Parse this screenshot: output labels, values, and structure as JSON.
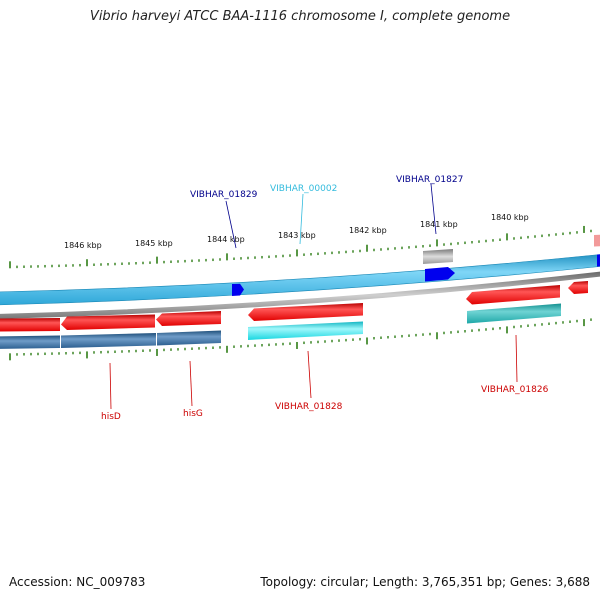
{
  "title": "Vibrio harveyi ATCC BAA-1116 chromosome I, complete genome",
  "footer": {
    "accession": "Accession: NC_009783",
    "topology": "Topology: circular; Length: 3,765,351 bp; Genes: 3,688"
  },
  "scale": {
    "ticks": [
      "1846 kbp",
      "1845 kbp",
      "1844 kbp",
      "1843 kbp",
      "1842 kbp",
      "1841 kbp",
      "1840 kbp"
    ]
  },
  "labels": {
    "top": [
      {
        "text": "VIBHAR_01829",
        "color": "#00008b"
      },
      {
        "text": "VIBHAR_00002",
        "color": "#33bbdd"
      },
      {
        "text": "VIBHAR_01827",
        "color": "#00008b"
      }
    ],
    "bottom": [
      {
        "text": "hisD",
        "color": "#cc0000"
      },
      {
        "text": "hisG",
        "color": "#cc0000"
      },
      {
        "text": "VIBHAR_01828",
        "color": "#cc0000"
      },
      {
        "text": "VIBHAR_01826",
        "color": "#cc0000"
      }
    ]
  },
  "colors": {
    "forward_track": "#33b6e6",
    "forward_feature": "#0000ee",
    "reverse_gene": "#ee1111",
    "reverse_cds": "#2a6496",
    "cyan_cds": "#22dddd",
    "teal_cds": "#22b3b3",
    "gray_feature": "#aaaaaa",
    "backbone": "#888888",
    "tick": "#2e7d16"
  }
}
